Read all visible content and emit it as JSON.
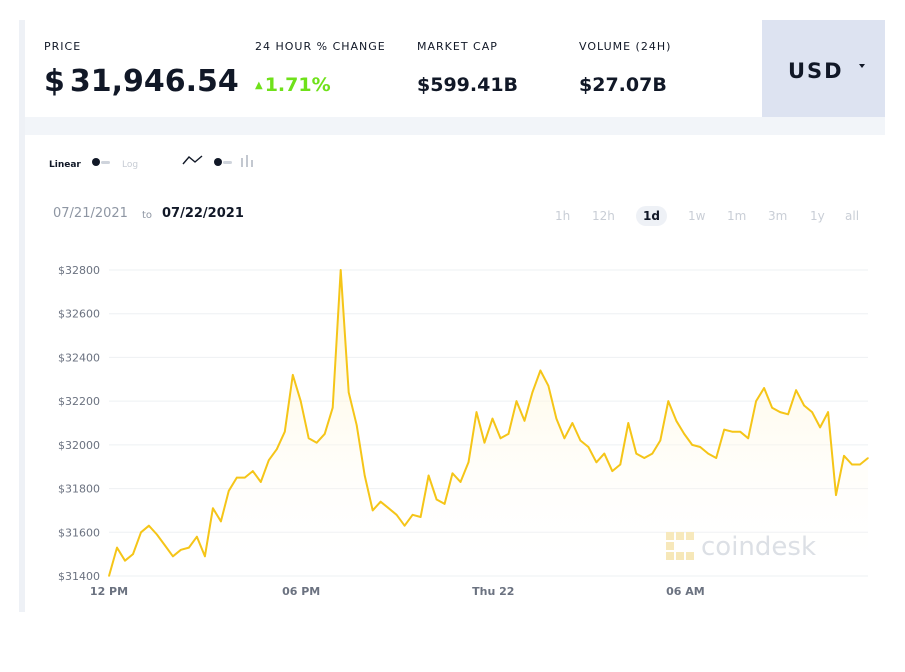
{
  "stats": {
    "price_label": "PRICE",
    "price_currency_symbol": "$",
    "price_value": "31,946.54",
    "change_label": "24 HOUR % CHANGE",
    "change_value": "1.71%",
    "market_cap_label": "MARKET CAP",
    "market_cap_value": "$599.41B",
    "volume_label": "VOLUME (24H)",
    "volume_value": "$27.07B"
  },
  "currency": {
    "selected": "USD"
  },
  "controls": {
    "scale_linear": "Linear",
    "scale_log": "Log",
    "date_from": "07/21/2021",
    "date_to_word": "to",
    "date_to": "07/22/2021",
    "ranges": [
      "1h",
      "12h",
      "1d",
      "1w",
      "1m",
      "3m",
      "1y",
      "all"
    ],
    "active_range": "1d"
  },
  "watermark": "coindesk",
  "colors": {
    "line": "#f5c518",
    "change_up": "#6fe11a",
    "currency_bg": "#dde3f1"
  },
  "chart_data": {
    "type": "area",
    "title": "",
    "xlabel": "",
    "ylabel": "",
    "ylim": [
      31400,
      32800
    ],
    "y_ticks": [
      31400,
      31600,
      31800,
      32000,
      32200,
      32400,
      32600,
      32800
    ],
    "y_tick_labels": [
      "$31400",
      "$31600",
      "$31800",
      "$32000",
      "$32200",
      "$32400",
      "$32600",
      "$32800"
    ],
    "x_tick_labels": [
      "12 PM",
      "06 PM",
      "Thu 22",
      "06 AM"
    ],
    "x_tick_hours": [
      0,
      6,
      12,
      18
    ],
    "x_range_hours": [
      0,
      23.7
    ],
    "grid": true,
    "series": [
      {
        "values": [
          31400,
          31530,
          31470,
          31500,
          31600,
          31630,
          31590,
          31540,
          31490,
          31520,
          31530,
          31580,
          31490,
          31710,
          31650,
          31790,
          31850,
          31850,
          31880,
          31830,
          31930,
          31980,
          32060,
          32320,
          32200,
          32030,
          32010,
          32050,
          32170,
          32800,
          32240,
          32090,
          31860,
          31700,
          31740,
          31710,
          31680,
          31630,
          31680,
          31670,
          31860,
          31750,
          31730,
          31870,
          31830,
          31920,
          32150,
          32010,
          32120,
          32030,
          32050,
          32200,
          32110,
          32240,
          32340,
          32270,
          32120,
          32030,
          32100,
          32020,
          31990,
          31920,
          31960,
          31880,
          31910,
          32100,
          31960,
          31940,
          31960,
          32020,
          32200,
          32110,
          32050,
          32000,
          31990,
          31960,
          31940,
          32070,
          32060,
          32060,
          32030,
          32200,
          32260,
          32170,
          32150,
          32140,
          32250,
          32180,
          32150,
          32080,
          32150,
          31770,
          31950,
          31910,
          31910,
          31940
        ]
      }
    ]
  }
}
